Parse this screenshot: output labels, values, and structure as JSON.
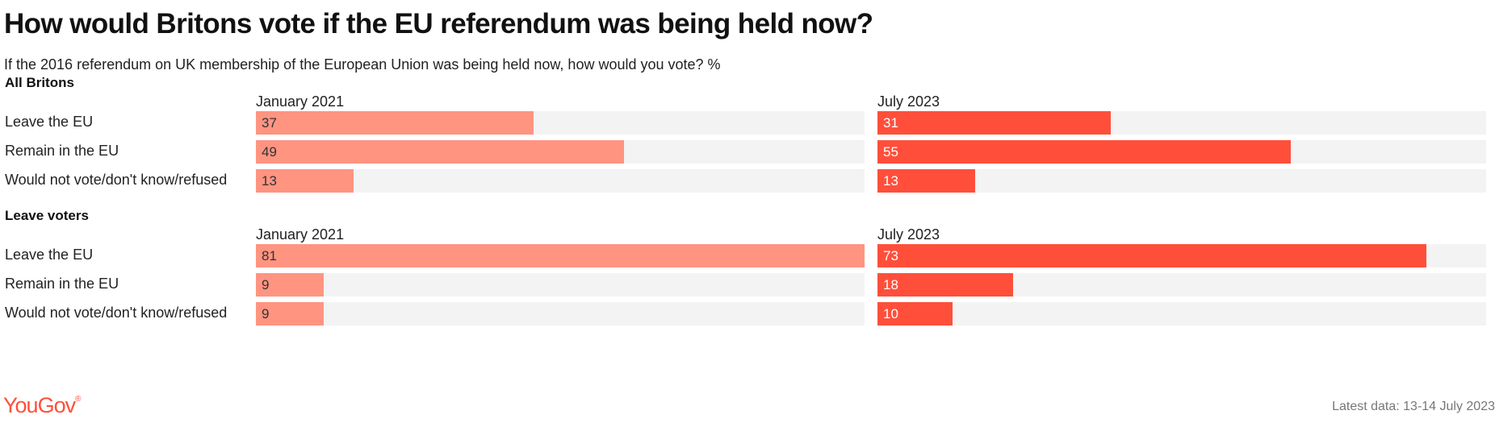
{
  "header": {
    "title": "How would Britons vote if the EU referendum was being held now?",
    "subtitle": "If the 2016 referendum on UK membership of the European Union was being held now, how would you vote? %"
  },
  "chart_data": {
    "type": "bar",
    "orientation": "horizontal",
    "xlim": [
      0,
      81
    ],
    "colors": {
      "January 2021": "#ff9481",
      "July 2023": "#ff4f3b"
    },
    "categories": [
      "Leave the EU",
      "Remain in the EU",
      "Would not vote/don't know/refused"
    ],
    "panels": [
      {
        "title": "All Britons",
        "columns": [
          {
            "name": "January 2021",
            "values": [
              37,
              49,
              13
            ]
          },
          {
            "name": "July 2023",
            "values": [
              31,
              55,
              13
            ]
          }
        ]
      },
      {
        "title": "Leave voters",
        "columns": [
          {
            "name": "January 2021",
            "values": [
              81,
              9,
              9
            ]
          },
          {
            "name": "July 2023",
            "values": [
              73,
              18,
              10
            ]
          }
        ]
      }
    ]
  },
  "footer": {
    "brand": "YouGov",
    "brand_mark": "®",
    "note": "Latest data: 13-14 July 2023"
  }
}
